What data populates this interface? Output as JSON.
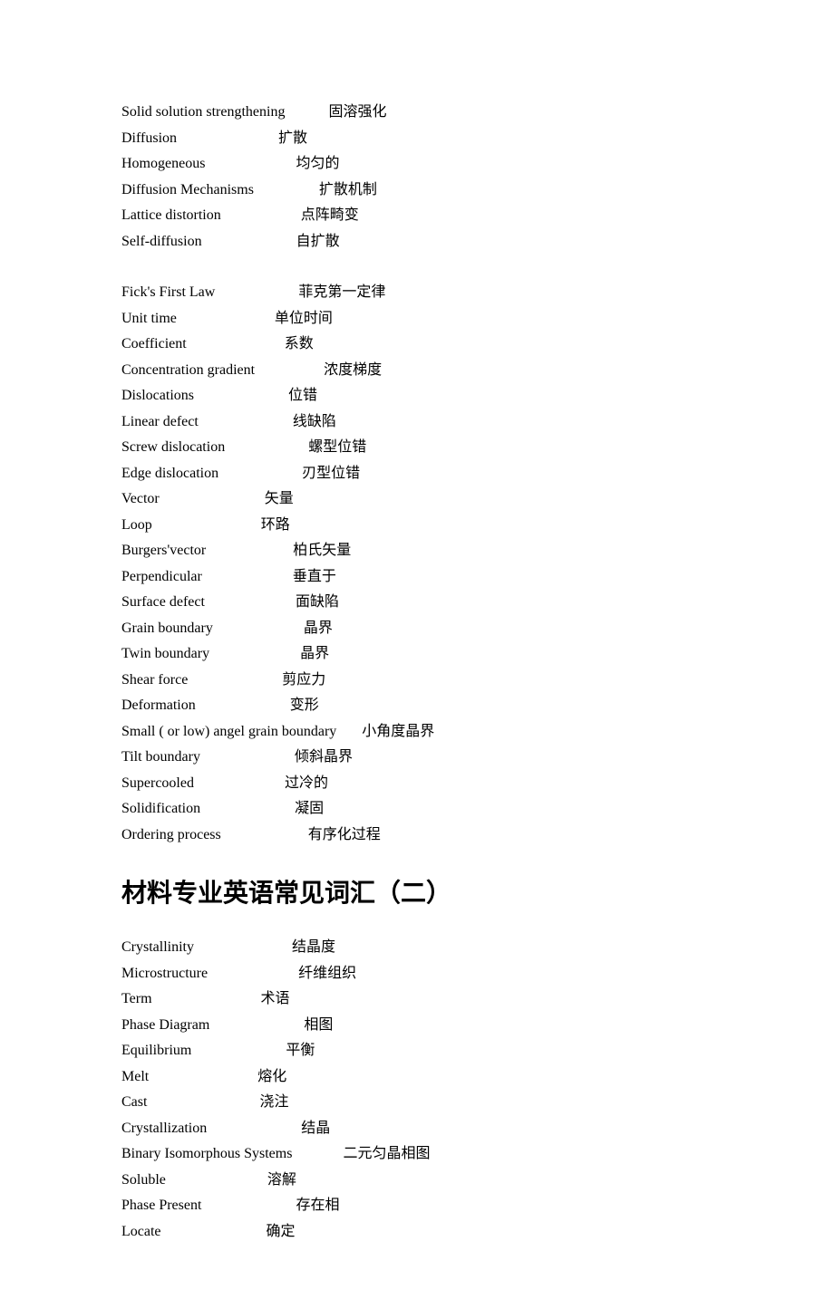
{
  "section1": [
    {
      "en": "Solid solution strengthening",
      "zh": "固溶强化",
      "pad": 12
    },
    {
      "en": "Diffusion",
      "zh": "扩散",
      "pad": 28
    },
    {
      "en": "Homogeneous",
      "zh": "均匀的",
      "pad": 25
    },
    {
      "en": "Diffusion Mechanisms",
      "zh": "扩散机制",
      "pad": 18
    },
    {
      "en": "Lattice distortion",
      "zh": "点阵畸变",
      "pad": 22
    },
    {
      "en": "Self-diffusion",
      "zh": "自扩散",
      "pad": 26
    }
  ],
  "section2": [
    {
      "en": "Fick's First Law",
      "zh": "菲克第一定律",
      "pad": 23
    },
    {
      "en": "Unit time",
      "zh": "单位时间",
      "pad": 27
    },
    {
      "en": "Coefficient",
      "zh": "系数",
      "pad": 27
    },
    {
      "en": "Concentration gradient",
      "zh": "浓度梯度",
      "pad": 19
    },
    {
      "en": "Dislocations",
      "zh": "位错",
      "pad": 26
    },
    {
      "en": "Linear defect",
      "zh": "线缺陷",
      "pad": 26
    },
    {
      "en": "Screw dislocation",
      "zh": "螺型位错",
      "pad": 23
    },
    {
      "en": "Edge dislocation",
      "zh": "刃型位错",
      "pad": 23
    },
    {
      "en": "Vector",
      "zh": "矢量",
      "pad": 29
    },
    {
      "en": "Loop",
      "zh": "环路",
      "pad": 30
    },
    {
      "en": "Burgers'vector",
      "zh": "柏氏矢量",
      "pad": 24
    },
    {
      "en": "Perpendicular",
      "zh": "垂直于",
      "pad": 25
    },
    {
      "en": "Surface defect",
      "zh": "面缺陷",
      "pad": 25
    },
    {
      "en": "Grain boundary",
      "zh": "晶界",
      "pad": 25
    },
    {
      "en": "Twin boundary",
      "zh": "晶界",
      "pad": 25
    },
    {
      "en": "Shear force",
      "zh": "剪应力",
      "pad": 26
    },
    {
      "en": "Deformation",
      "zh": "变形",
      "pad": 26
    },
    {
      "en": "Small ( or low) angel grain boundary",
      "zh": "小角度晶界",
      "pad": 7
    },
    {
      "en": "Tilt boundary",
      "zh": "倾斜晶界",
      "pad": 26
    },
    {
      "en": "Supercooled",
      "zh": "过冷的",
      "pad": 25
    },
    {
      "en": "Solidification",
      "zh": "凝固",
      "pad": 26
    },
    {
      "en": "Ordering process",
      "zh": "有序化过程",
      "pad": 24
    }
  ],
  "heading": "材料专业英语常见词汇（二）",
  "section3": [
    {
      "en": "Crystallinity",
      "zh": "结晶度",
      "pad": 27
    },
    {
      "en": "Microstructure",
      "zh": "纤维组织",
      "pad": 25
    },
    {
      "en": "Term",
      "zh": "术语",
      "pad": 30
    },
    {
      "en": "Phase Diagram",
      "zh": "相图",
      "pad": 26
    },
    {
      "en": "Equilibrium",
      "zh": "平衡",
      "pad": 26
    },
    {
      "en": "Melt",
      "zh": "熔化",
      "pad": 30
    },
    {
      "en": "Cast",
      "zh": "浇注",
      "pad": 31
    },
    {
      "en": "Crystallization",
      "zh": "结晶",
      "pad": 26
    },
    {
      "en": "Binary Isomorphous Systems",
      "zh": "二元匀晶相图",
      "pad": 14
    },
    {
      "en": "Soluble",
      "zh": "溶解",
      "pad": 28
    },
    {
      "en": "Phase Present",
      "zh": "存在相",
      "pad": 26
    },
    {
      "en": "Locate",
      "zh": "确定",
      "pad": 29
    }
  ],
  "colors": {
    "text": "#000000",
    "background": "#ffffff"
  },
  "fontsize_body": 16,
  "fontsize_heading": 28,
  "lineheight": 28.5
}
